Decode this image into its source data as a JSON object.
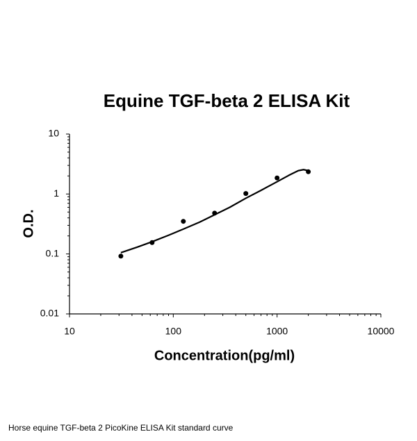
{
  "chart_data": {
    "type": "scatter",
    "title": "Equine TGF-beta 2 ELISA Kit",
    "xlabel": "Concentration(pg/ml)",
    "ylabel": "O.D.",
    "caption": "Horse equine TGF-beta 2 PicoKine ELISA Kit standard curve",
    "x": [
      31.25,
      62.5,
      125,
      250,
      500,
      1000,
      2000
    ],
    "values": [
      0.092,
      0.155,
      0.35,
      0.48,
      1.02,
      1.85,
      2.35
    ],
    "color": "#000000",
    "curve": {
      "x": [
        31.25,
        45,
        62.5,
        90,
        125,
        180,
        250,
        350,
        500,
        700,
        1000,
        1300,
        1600,
        1800,
        2000
      ],
      "y": [
        0.105,
        0.13,
        0.16,
        0.205,
        0.26,
        0.34,
        0.45,
        0.6,
        0.85,
        1.15,
        1.6,
        2.05,
        2.45,
        2.55,
        2.45
      ]
    },
    "xlim": [
      10,
      10000
    ],
    "ylim": [
      0.01,
      10
    ],
    "xticks": [
      10,
      100,
      1000,
      10000
    ],
    "yticks": [
      0.01,
      0.1,
      1,
      10
    ],
    "xlog": true,
    "ylog": true,
    "minor_ticks": true
  }
}
